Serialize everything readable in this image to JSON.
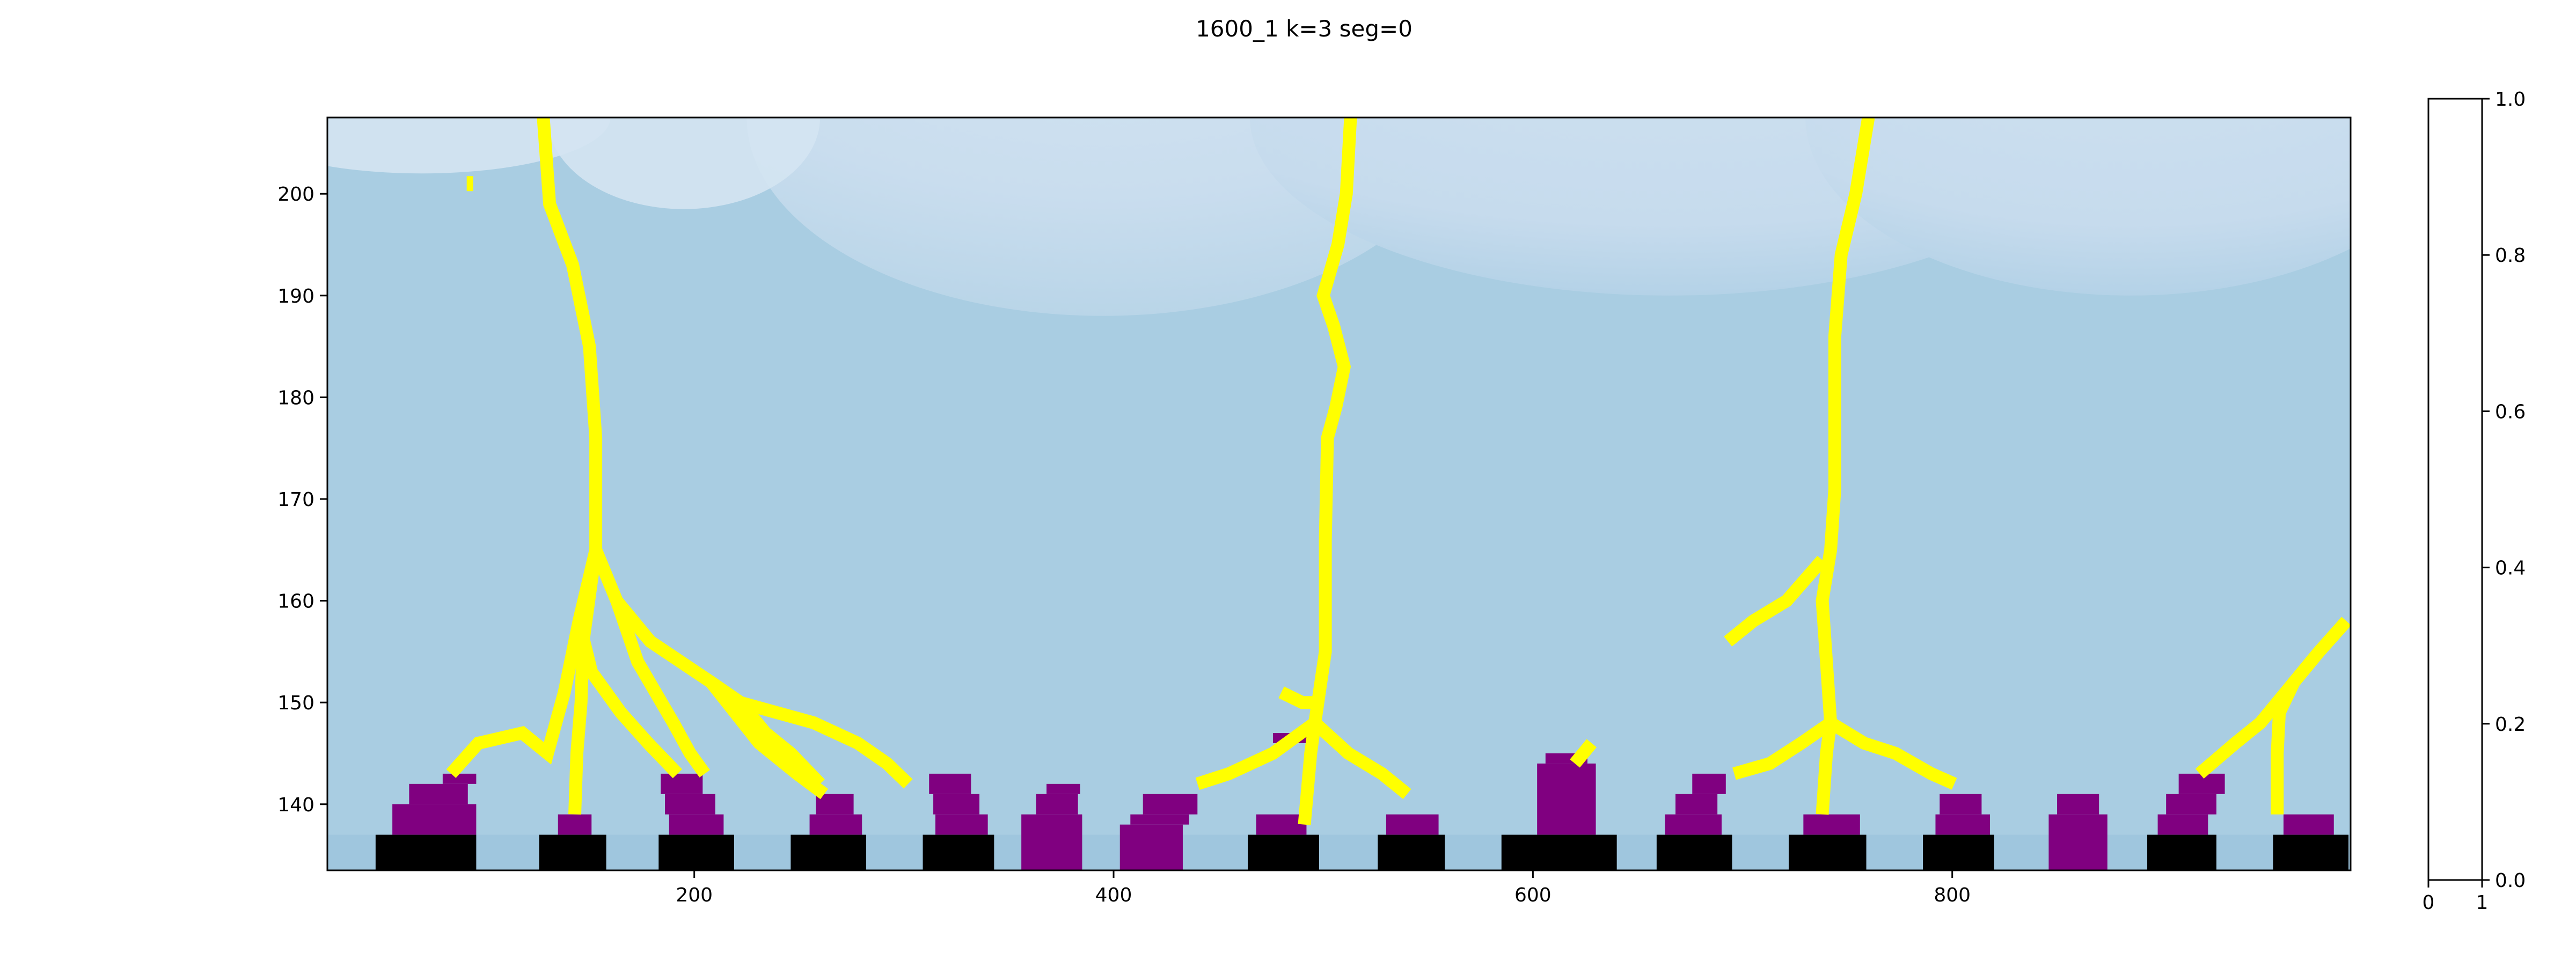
{
  "title": "1600_1 k=3   seg=0",
  "chart_data": {
    "type": "heatmap",
    "title": "1600_1 k=3   seg=0",
    "xlabel": "",
    "ylabel": "",
    "xlim": [
      25,
      990
    ],
    "ylim": [
      133.5,
      207.5
    ],
    "x_ticks": [
      "200",
      "400",
      "600",
      "800"
    ],
    "y_ticks": [
      "140",
      "150",
      "160",
      "170",
      "180",
      "190",
      "200"
    ],
    "colors": {
      "background": "#a9cde2",
      "light_region": "#cadeee",
      "lightest_region": "#d4e4f2",
      "base_strip": "#9fc6de",
      "channel": "#ffff00",
      "deposit": "#800080",
      "solid": "#000000"
    },
    "solid_blocks": [
      [
        48,
        96
      ],
      [
        126,
        158
      ],
      [
        183,
        219
      ],
      [
        246,
        282
      ],
      [
        309,
        343
      ],
      [
        464,
        498
      ],
      [
        526,
        558
      ],
      [
        585,
        640
      ],
      [
        659,
        695
      ],
      [
        722,
        759
      ],
      [
        786,
        820
      ],
      [
        893,
        926
      ],
      [
        953,
        989
      ]
    ],
    "deposits": [
      {
        "x": [
          56,
          96
        ],
        "y": [
          137,
          140
        ]
      },
      {
        "x": [
          64,
          92
        ],
        "y": [
          140,
          142
        ]
      },
      {
        "x": [
          80,
          96
        ],
        "y": [
          142,
          143
        ]
      },
      {
        "x": [
          135,
          151
        ],
        "y": [
          137,
          139
        ]
      },
      {
        "x": [
          188,
          214
        ],
        "y": [
          137,
          139
        ]
      },
      {
        "x": [
          186,
          210
        ],
        "y": [
          139,
          141
        ]
      },
      {
        "x": [
          184,
          204
        ],
        "y": [
          141,
          143
        ]
      },
      {
        "x": [
          255,
          280
        ],
        "y": [
          137,
          139
        ]
      },
      {
        "x": [
          258,
          276
        ],
        "y": [
          139,
          141
        ]
      },
      {
        "x": [
          315,
          340
        ],
        "y": [
          137,
          139
        ]
      },
      {
        "x": [
          314,
          336
        ],
        "y": [
          139,
          141
        ]
      },
      {
        "x": [
          312,
          332
        ],
        "y": [
          141,
          143
        ]
      },
      {
        "x": [
          356,
          385
        ],
        "y": [
          133.5,
          139
        ]
      },
      {
        "x": [
          363,
          383
        ],
        "y": [
          139,
          141
        ]
      },
      {
        "x": [
          368,
          384
        ],
        "y": [
          141,
          142
        ]
      },
      {
        "x": [
          403,
          433
        ],
        "y": [
          133.5,
          138
        ]
      },
      {
        "x": [
          408,
          436
        ],
        "y": [
          138,
          139
        ]
      },
      {
        "x": [
          414,
          440
        ],
        "y": [
          139,
          141
        ]
      },
      {
        "x": [
          468,
          492
        ],
        "y": [
          137,
          139
        ]
      },
      {
        "x": [
          530,
          555
        ],
        "y": [
          137,
          139
        ]
      },
      {
        "x": [
          602,
          630
        ],
        "y": [
          137,
          144
        ]
      },
      {
        "x": [
          606,
          626
        ],
        "y": [
          144,
          145
        ]
      },
      {
        "x": [
          663,
          690
        ],
        "y": [
          137,
          139
        ]
      },
      {
        "x": [
          668,
          688
        ],
        "y": [
          139,
          141
        ]
      },
      {
        "x": [
          676,
          692
        ],
        "y": [
          141,
          143
        ]
      },
      {
        "x": [
          729,
          756
        ],
        "y": [
          137,
          139
        ]
      },
      {
        "x": [
          792,
          818
        ],
        "y": [
          137,
          139
        ]
      },
      {
        "x": [
          794,
          814
        ],
        "y": [
          139,
          141
        ]
      },
      {
        "x": [
          846,
          874
        ],
        "y": [
          133.5,
          139
        ]
      },
      {
        "x": [
          850,
          870
        ],
        "y": [
          139,
          141
        ]
      },
      {
        "x": [
          898,
          922
        ],
        "y": [
          137,
          139
        ]
      },
      {
        "x": [
          902,
          926
        ],
        "y": [
          139,
          141
        ]
      },
      {
        "x": [
          908,
          930
        ],
        "y": [
          141,
          143
        ]
      },
      {
        "x": [
          958,
          982
        ],
        "y": [
          137,
          139
        ]
      },
      {
        "x": [
          476,
          496
        ],
        "y": [
          146,
          147
        ]
      }
    ],
    "channels": [
      [
        [
          128,
          207.5
        ],
        [
          131,
          199
        ],
        [
          142,
          193
        ],
        [
          150,
          185
        ],
        [
          153,
          176
        ],
        [
          153,
          165
        ],
        [
          145,
          158
        ],
        [
          138,
          151
        ],
        [
          134,
          148
        ],
        [
          130,
          145
        ],
        [
          118,
          147
        ],
        [
          97,
          146
        ],
        [
          84,
          143
        ]
      ],
      [
        [
          153,
          165
        ],
        [
          147,
          156
        ],
        [
          146,
          150
        ],
        [
          144,
          145
        ],
        [
          143,
          139
        ]
      ],
      [
        [
          153,
          165
        ],
        [
          163,
          160
        ],
        [
          173,
          154
        ],
        [
          190,
          148
        ],
        [
          198,
          145
        ],
        [
          205,
          143
        ]
      ],
      [
        [
          145,
          158
        ],
        [
          151,
          153
        ],
        [
          165,
          149
        ],
        [
          178,
          146
        ],
        [
          192,
          143
        ]
      ],
      [
        [
          153,
          165
        ],
        [
          163,
          160
        ],
        [
          179,
          156
        ],
        [
          208,
          152
        ],
        [
          222,
          150
        ],
        [
          234,
          147
        ],
        [
          246,
          145
        ],
        [
          260,
          142
        ]
      ],
      [
        [
          208,
          152
        ],
        [
          231,
          146
        ],
        [
          249,
          143
        ],
        [
          262,
          141
        ]
      ],
      [
        [
          222,
          150
        ],
        [
          257,
          148
        ],
        [
          278,
          146
        ],
        [
          292,
          144
        ],
        [
          302,
          142
        ]
      ],
      [
        [
          513,
          207.5
        ],
        [
          511,
          200
        ],
        [
          507,
          195
        ],
        [
          500,
          190
        ],
        [
          505,
          187
        ],
        [
          510,
          183
        ],
        [
          506,
          179
        ],
        [
          502,
          176
        ],
        [
          501,
          166
        ],
        [
          501,
          155
        ],
        [
          496,
          148
        ],
        [
          494,
          145
        ],
        [
          491,
          138
        ]
      ],
      [
        [
          497,
          150
        ],
        [
          490,
          150
        ],
        [
          480,
          151
        ]
      ],
      [
        [
          496,
          148
        ],
        [
          476,
          145
        ],
        [
          455,
          143
        ],
        [
          440,
          142
        ]
      ],
      [
        [
          496,
          148
        ],
        [
          512,
          145
        ],
        [
          528,
          143
        ],
        [
          540,
          141
        ]
      ],
      [
        [
          760,
          207.5
        ],
        [
          754,
          200
        ],
        [
          747,
          194
        ],
        [
          744,
          186
        ],
        [
          744,
          171
        ],
        [
          742,
          165
        ],
        [
          738,
          160
        ],
        [
          740,
          154
        ],
        [
          742,
          148
        ],
        [
          740,
          145
        ],
        [
          738,
          139
        ]
      ],
      [
        [
          738,
          164
        ],
        [
          721,
          160
        ],
        [
          705,
          158
        ],
        [
          693,
          156
        ]
      ],
      [
        [
          742,
          148
        ],
        [
          728,
          146
        ],
        [
          713,
          144
        ],
        [
          696,
          143
        ]
      ],
      [
        [
          742,
          148
        ],
        [
          758,
          146
        ],
        [
          773,
          145
        ],
        [
          790,
          143
        ],
        [
          801,
          142
        ]
      ],
      [
        [
          988,
          158
        ],
        [
          975,
          155
        ],
        [
          963,
          152
        ],
        [
          956,
          149
        ],
        [
          955,
          145
        ],
        [
          955,
          139
        ]
      ],
      [
        [
          963,
          152
        ],
        [
          947,
          148
        ],
        [
          935,
          146
        ],
        [
          918,
          143
        ]
      ],
      [
        [
          628,
          146
        ],
        [
          624,
          145
        ],
        [
          620,
          144
        ]
      ]
    ],
    "small_marks": [
      {
        "x": 93,
        "y": 201
      }
    ],
    "colorbar": {
      "ylim": [
        0.0,
        1.0
      ],
      "xlim": [
        0,
        1
      ],
      "y_ticks": [
        "0.0",
        "0.2",
        "0.4",
        "0.6",
        "0.8",
        "1.0"
      ],
      "x_ticks": [
        "0",
        "1"
      ]
    }
  }
}
